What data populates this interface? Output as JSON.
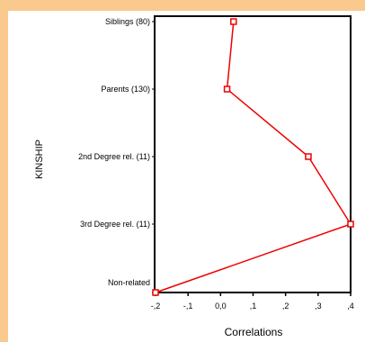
{
  "chart_data": {
    "type": "line",
    "title": "",
    "xlabel": "Correlations",
    "ylabel": "KINSHIP",
    "xlim": [
      -0.2,
      0.4
    ],
    "x_ticks": [
      -0.2,
      -0.1,
      0.0,
      0.1,
      0.2,
      0.3,
      0.4
    ],
    "x_tick_labels": [
      "-,2",
      "-,1",
      "0,0",
      ",1",
      ",2",
      ",3",
      ",4"
    ],
    "categories": [
      "Siblings (80)",
      "Parents (130)",
      "2nd Degree rel. (11)",
      "3rd Degree rel. (11)",
      "Non-related"
    ],
    "series": [
      {
        "values": [
          0.04,
          0.02,
          0.27,
          0.4,
          -0.2
        ]
      }
    ],
    "grid": false,
    "colors": {
      "line": "#ee0000",
      "marker": "#ee0000",
      "frame": "#000000",
      "outer_background": "#f9c98d",
      "panel_background": "#ffffff"
    }
  }
}
